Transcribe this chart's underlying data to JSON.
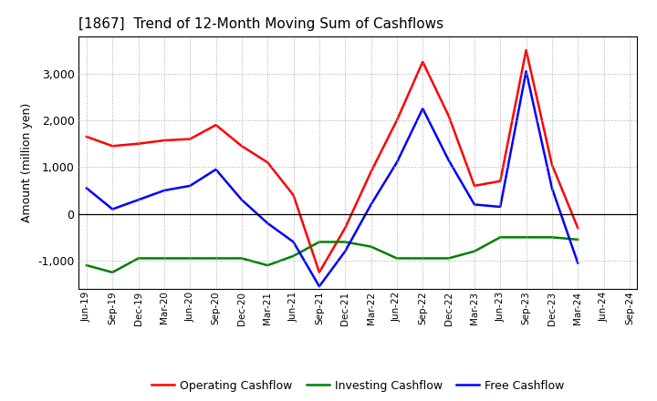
{
  "title": "[1867]  Trend of 12-Month Moving Sum of Cashflows",
  "ylabel": "Amount (million yen)",
  "x_labels": [
    "Jun-19",
    "Sep-19",
    "Dec-19",
    "Mar-20",
    "Jun-20",
    "Sep-20",
    "Dec-20",
    "Mar-21",
    "Jun-21",
    "Sep-21",
    "Dec-21",
    "Mar-22",
    "Jun-22",
    "Sep-22",
    "Dec-22",
    "Mar-23",
    "Jun-23",
    "Sep-23",
    "Dec-23",
    "Mar-24",
    "Jun-24",
    "Sep-24"
  ],
  "operating": [
    1650,
    1450,
    1500,
    1570,
    1600,
    1900,
    1450,
    1100,
    400,
    -1250,
    -300,
    900,
    2000,
    3250,
    2100,
    600,
    700,
    3500,
    1050,
    -300,
    null,
    null
  ],
  "investing": [
    -1100,
    -1250,
    -950,
    -950,
    -950,
    -950,
    -950,
    -1100,
    -900,
    -600,
    -600,
    -700,
    -950,
    -950,
    -950,
    -800,
    -500,
    -500,
    -500,
    -550,
    null,
    null
  ],
  "free": [
    550,
    100,
    300,
    500,
    600,
    950,
    300,
    -200,
    -600,
    -1550,
    -800,
    200,
    1100,
    2250,
    1150,
    200,
    150,
    3050,
    550,
    -1050,
    null,
    null
  ],
  "colors": {
    "operating": "#ff0000",
    "investing": "#008000",
    "free": "#0000ff"
  },
  "ylim": [
    -1600,
    3800
  ],
  "yticks": [
    -1000,
    0,
    1000,
    2000,
    3000
  ],
  "legend_labels": [
    "Operating Cashflow",
    "Investing Cashflow",
    "Free Cashflow"
  ],
  "background_color": "#ffffff",
  "grid_color": "#aaaaaa"
}
